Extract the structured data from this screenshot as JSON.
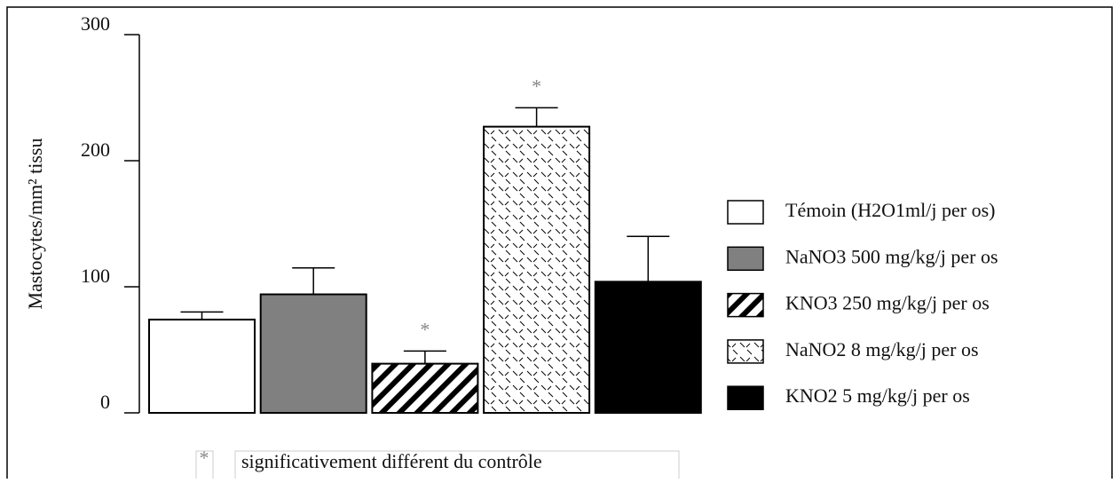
{
  "chart_data": {
    "type": "bar",
    "ylabel": "Mastocytes/mm² tissu",
    "ylim": [
      0,
      300
    ],
    "yticks": [
      0,
      100,
      200,
      300
    ],
    "series": [
      {
        "name": "Témoin (H2O1ml/j per os)",
        "color": "#ffffff",
        "pattern": "none",
        "values": [
          74
        ],
        "errors": [
          6
        ]
      },
      {
        "name": "NaNO3 500 mg/kg/j per os",
        "color": "#808080",
        "pattern": "none",
        "values": [
          94
        ],
        "errors": [
          21
        ]
      },
      {
        "name": "KNO3 250 mg/kg/j per os",
        "color": "#ffffff",
        "pattern": "hatch",
        "values": [
          39
        ],
        "errors": [
          10
        ]
      },
      {
        "name": "NaNO2 8 mg/kg/j per os",
        "color": "#ffffff",
        "pattern": "dash",
        "values": [
          227
        ],
        "errors": [
          15
        ]
      },
      {
        "name": "KNO2 5 mg/kg/j per os",
        "color": "#000000",
        "pattern": "none",
        "values": [
          104
        ],
        "errors": [
          36
        ]
      }
    ],
    "annotations": [
      {
        "text": "*",
        "series": 2
      },
      {
        "text": "*",
        "series": 3
      }
    ],
    "footnote": {
      "symbol": "*",
      "text": "significativement différent du contrôle"
    },
    "legend": "right"
  }
}
